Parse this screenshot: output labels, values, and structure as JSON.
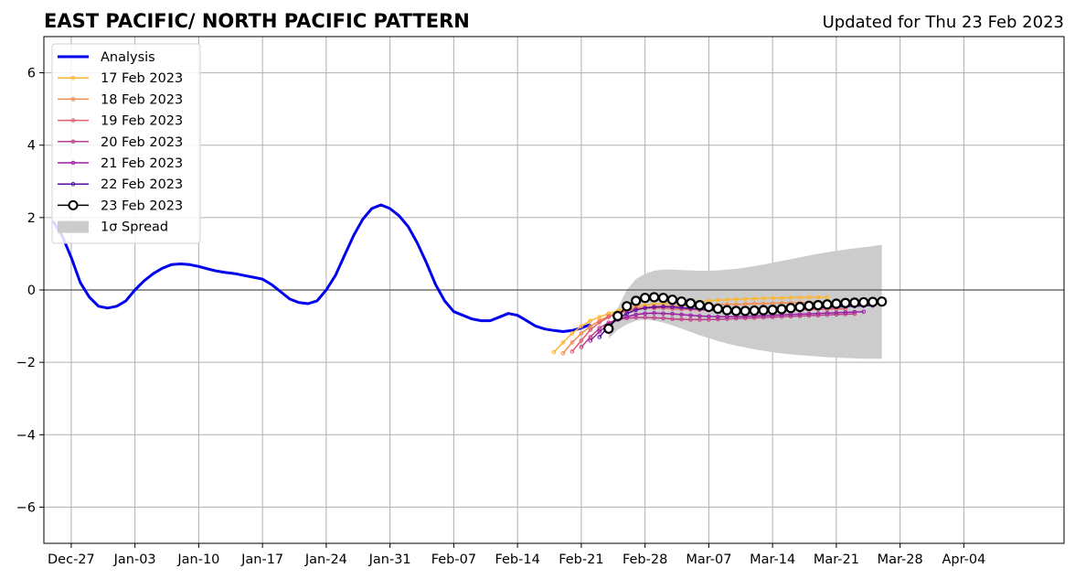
{
  "chart_data": {
    "type": "line",
    "title": "EAST PACIFIC/ NORTH PACIFIC PATTERN",
    "subtitle": "Updated for Thu 23 Feb 2023",
    "xlabel": "",
    "ylabel": "",
    "ylim": [
      -7,
      7
    ],
    "xlim_days": [
      -3,
      109
    ],
    "x_ticks": [
      {
        "day": 0,
        "label": "Dec-27"
      },
      {
        "day": 7,
        "label": "Jan-03"
      },
      {
        "day": 14,
        "label": "Jan-10"
      },
      {
        "day": 21,
        "label": "Jan-17"
      },
      {
        "day": 28,
        "label": "Jan-24"
      },
      {
        "day": 35,
        "label": "Jan-31"
      },
      {
        "day": 42,
        "label": "Feb-07"
      },
      {
        "day": 49,
        "label": "Feb-14"
      },
      {
        "day": 56,
        "label": "Feb-21"
      },
      {
        "day": 63,
        "label": "Feb-28"
      },
      {
        "day": 70,
        "label": "Mar-07"
      },
      {
        "day": 77,
        "label": "Mar-14"
      },
      {
        "day": 84,
        "label": "Mar-21"
      },
      {
        "day": 91,
        "label": "Mar-28"
      },
      {
        "day": 98,
        "label": "Apr-04"
      }
    ],
    "y_ticks": [
      -6,
      -4,
      -2,
      0,
      2,
      4,
      6
    ],
    "y_tick_labels": [
      "−6",
      "−4",
      "−2",
      "0",
      "2",
      "4",
      "6"
    ],
    "grid": true,
    "legend_position": "top-left",
    "legend": [
      {
        "label": "Analysis",
        "kind": "line",
        "color": "#0000ee"
      },
      {
        "label": "17 Feb 2023",
        "kind": "dotline",
        "color": "#fcb531"
      },
      {
        "label": "18 Feb 2023",
        "kind": "dotline",
        "color": "#f28b4e"
      },
      {
        "label": "19 Feb 2023",
        "kind": "dotline",
        "color": "#df5e6e"
      },
      {
        "label": "20 Feb 2023",
        "kind": "dotline",
        "color": "#be3f87"
      },
      {
        "label": "21 Feb 2023",
        "kind": "dotline",
        "color": "#9a1fa0"
      },
      {
        "label": "22 Feb 2023",
        "kind": "dotline",
        "color": "#5b0aa2"
      },
      {
        "label": "23 Feb 2023",
        "kind": "circles",
        "color": "#000000"
      },
      {
        "label": "1σ Spread",
        "kind": "patch",
        "color": "#cccccc"
      }
    ],
    "series": [
      {
        "name": "Analysis",
        "color": "#0000ee",
        "x": [
          -2,
          -1,
          0,
          1,
          2,
          3,
          4,
          5,
          6,
          7,
          8,
          9,
          10,
          11,
          12,
          13,
          14,
          15,
          16,
          17,
          18,
          19,
          20,
          21,
          22,
          23,
          24,
          25,
          26,
          27,
          28,
          29,
          30,
          31,
          32,
          33,
          34,
          35,
          36,
          37,
          38,
          39,
          40,
          41,
          42,
          43,
          44,
          45,
          46,
          47,
          48,
          49,
          50,
          51,
          52,
          53,
          54,
          55,
          56,
          57
        ],
        "y": [
          1.9,
          1.5,
          0.9,
          0.2,
          -0.2,
          -0.45,
          -0.5,
          -0.45,
          -0.3,
          0.0,
          0.25,
          0.45,
          0.6,
          0.7,
          0.72,
          0.7,
          0.65,
          0.58,
          0.52,
          0.48,
          0.45,
          0.4,
          0.35,
          0.3,
          0.15,
          -0.05,
          -0.25,
          -0.35,
          -0.38,
          -0.3,
          0.0,
          0.4,
          0.95,
          1.5,
          1.95,
          2.25,
          2.35,
          2.25,
          2.05,
          1.75,
          1.3,
          0.75,
          0.15,
          -0.3,
          -0.6,
          -0.7,
          -0.8,
          -0.85,
          -0.85,
          -0.75,
          -0.65,
          -0.7,
          -0.85,
          -1.0,
          -1.08,
          -1.12,
          -1.15,
          -1.12,
          -1.05,
          -0.95
        ]
      },
      {
        "name": "17 Feb 2023",
        "color": "#fcb531",
        "x": [
          53,
          54,
          55,
          56,
          57,
          58,
          59,
          60,
          61,
          62,
          63,
          64,
          65,
          66,
          67,
          68,
          69,
          70,
          71,
          72,
          73,
          74,
          75,
          76,
          77,
          78,
          79,
          80,
          81,
          82,
          83
        ],
        "y": [
          -1.72,
          -1.45,
          -1.2,
          -1.0,
          -0.85,
          -0.75,
          -0.65,
          -0.58,
          -0.5,
          -0.45,
          -0.42,
          -0.4,
          -0.38,
          -0.36,
          -0.35,
          -0.34,
          -0.32,
          -0.3,
          -0.28,
          -0.27,
          -0.26,
          -0.25,
          -0.24,
          -0.23,
          -0.22,
          -0.22,
          -0.21,
          -0.21,
          -0.2,
          -0.2,
          -0.2
        ]
      },
      {
        "name": "18 Feb 2023",
        "color": "#f28b4e",
        "x": [
          54,
          55,
          56,
          57,
          58,
          59,
          60,
          61,
          62,
          63,
          64,
          65,
          66,
          67,
          68,
          69,
          70,
          71,
          72,
          73,
          74,
          75,
          76,
          77,
          78,
          79,
          80,
          81,
          82,
          83,
          84
        ],
        "y": [
          -1.75,
          -1.45,
          -1.2,
          -1.0,
          -0.85,
          -0.72,
          -0.62,
          -0.55,
          -0.5,
          -0.48,
          -0.46,
          -0.45,
          -0.44,
          -0.44,
          -0.43,
          -0.42,
          -0.42,
          -0.41,
          -0.4,
          -0.4,
          -0.39,
          -0.38,
          -0.38,
          -0.37,
          -0.36,
          -0.36,
          -0.35,
          -0.35,
          -0.34,
          -0.34,
          -0.33
        ]
      },
      {
        "name": "19 Feb 2023",
        "color": "#df5e6e",
        "x": [
          55,
          56,
          57,
          58,
          59,
          60,
          61,
          62,
          63,
          64,
          65,
          66,
          67,
          68,
          69,
          70,
          71,
          72,
          73,
          74,
          75,
          76,
          77,
          78,
          79,
          80,
          81,
          82,
          83,
          84,
          85
        ],
        "y": [
          -1.7,
          -1.4,
          -1.1,
          -0.9,
          -0.75,
          -0.65,
          -0.58,
          -0.52,
          -0.5,
          -0.5,
          -0.5,
          -0.52,
          -0.53,
          -0.54,
          -0.55,
          -0.56,
          -0.56,
          -0.57,
          -0.57,
          -0.57,
          -0.57,
          -0.56,
          -0.56,
          -0.55,
          -0.55,
          -0.54,
          -0.54,
          -0.53,
          -0.53,
          -0.52,
          -0.52
        ]
      },
      {
        "name": "20 Feb 2023",
        "color": "#be3f87",
        "x": [
          56,
          57,
          58,
          59,
          60,
          61,
          62,
          63,
          64,
          65,
          66,
          67,
          68,
          69,
          70,
          71,
          72,
          73,
          74,
          75,
          76,
          77,
          78,
          79,
          80,
          81,
          82,
          83,
          84,
          85,
          86
        ],
        "y": [
          -1.58,
          -1.3,
          -1.05,
          -0.9,
          -0.82,
          -0.78,
          -0.76,
          -0.76,
          -0.77,
          -0.78,
          -0.8,
          -0.81,
          -0.82,
          -0.82,
          -0.82,
          -0.81,
          -0.8,
          -0.79,
          -0.78,
          -0.77,
          -0.76,
          -0.75,
          -0.74,
          -0.73,
          -0.72,
          -0.71,
          -0.7,
          -0.69,
          -0.68,
          -0.67,
          -0.66
        ]
      },
      {
        "name": "21 Feb 2023",
        "color": "#9a1fa0",
        "x": [
          57,
          58,
          59,
          60,
          61,
          62,
          63,
          64,
          65,
          66,
          67,
          68,
          69,
          70,
          71,
          72,
          73,
          74,
          75,
          76,
          77,
          78,
          79,
          80,
          81,
          82,
          83,
          84,
          85,
          86,
          87
        ],
        "y": [
          -1.4,
          -1.15,
          -0.95,
          -0.82,
          -0.74,
          -0.68,
          -0.65,
          -0.64,
          -0.65,
          -0.66,
          -0.68,
          -0.7,
          -0.72,
          -0.73,
          -0.74,
          -0.74,
          -0.74,
          -0.73,
          -0.72,
          -0.71,
          -0.7,
          -0.69,
          -0.68,
          -0.67,
          -0.66,
          -0.65,
          -0.64,
          -0.63,
          -0.62,
          -0.61,
          -0.6
        ]
      },
      {
        "name": "22 Feb 2023",
        "color": "#5b0aa2",
        "x": [
          58,
          59,
          60,
          61,
          62,
          63,
          64,
          65,
          66,
          67,
          68,
          69,
          70,
          71,
          72,
          73,
          74,
          75,
          76,
          77,
          78,
          79,
          80,
          81,
          82,
          83,
          84,
          85,
          86,
          87,
          88
        ],
        "y": [
          -1.3,
          -1.0,
          -0.8,
          -0.65,
          -0.55,
          -0.5,
          -0.47,
          -0.46,
          -0.47,
          -0.49,
          -0.51,
          -0.53,
          -0.55,
          -0.56,
          -0.57,
          -0.57,
          -0.57,
          -0.56,
          -0.55,
          -0.54,
          -0.53,
          -0.52,
          -0.51,
          -0.5,
          -0.49,
          -0.48,
          -0.47,
          -0.46,
          -0.45,
          -0.44,
          -0.43
        ]
      },
      {
        "name": "23 Feb 2023",
        "color": "#000000",
        "x": [
          59,
          60,
          61,
          62,
          63,
          64,
          65,
          66,
          67,
          68,
          69,
          70,
          71,
          72,
          73,
          74,
          75,
          76,
          77,
          78,
          79,
          80,
          81,
          82,
          83,
          84,
          85,
          86,
          87,
          88,
          89
        ],
        "y": [
          -1.07,
          -0.72,
          -0.45,
          -0.3,
          -0.22,
          -0.2,
          -0.22,
          -0.27,
          -0.32,
          -0.37,
          -0.42,
          -0.47,
          -0.52,
          -0.56,
          -0.58,
          -0.58,
          -0.57,
          -0.56,
          -0.55,
          -0.53,
          -0.5,
          -0.47,
          -0.44,
          -0.42,
          -0.4,
          -0.38,
          -0.36,
          -0.35,
          -0.34,
          -0.33,
          -0.32
        ]
      }
    ],
    "spread": {
      "name": "1σ Spread",
      "color": "#cccccc",
      "x": [
        59,
        60,
        61,
        62,
        63,
        64,
        65,
        66,
        67,
        68,
        69,
        70,
        71,
        72,
        73,
        74,
        75,
        76,
        77,
        78,
        79,
        80,
        81,
        82,
        83,
        84,
        85,
        86,
        87,
        88,
        89
      ],
      "upper": [
        -1.1,
        -0.5,
        0.0,
        0.3,
        0.45,
        0.53,
        0.56,
        0.56,
        0.55,
        0.54,
        0.53,
        0.53,
        0.54,
        0.56,
        0.58,
        0.62,
        0.66,
        0.7,
        0.75,
        0.8,
        0.85,
        0.9,
        0.95,
        1.0,
        1.04,
        1.08,
        1.12,
        1.15,
        1.18,
        1.21,
        1.25
      ],
      "lower": [
        -1.35,
        -1.1,
        -0.95,
        -0.85,
        -0.82,
        -0.85,
        -0.9,
        -0.98,
        -1.07,
        -1.16,
        -1.25,
        -1.33,
        -1.41,
        -1.48,
        -1.54,
        -1.59,
        -1.64,
        -1.68,
        -1.72,
        -1.75,
        -1.78,
        -1.8,
        -1.82,
        -1.84,
        -1.86,
        -1.87,
        -1.88,
        -1.89,
        -1.9,
        -1.9,
        -1.9
      ]
    }
  }
}
